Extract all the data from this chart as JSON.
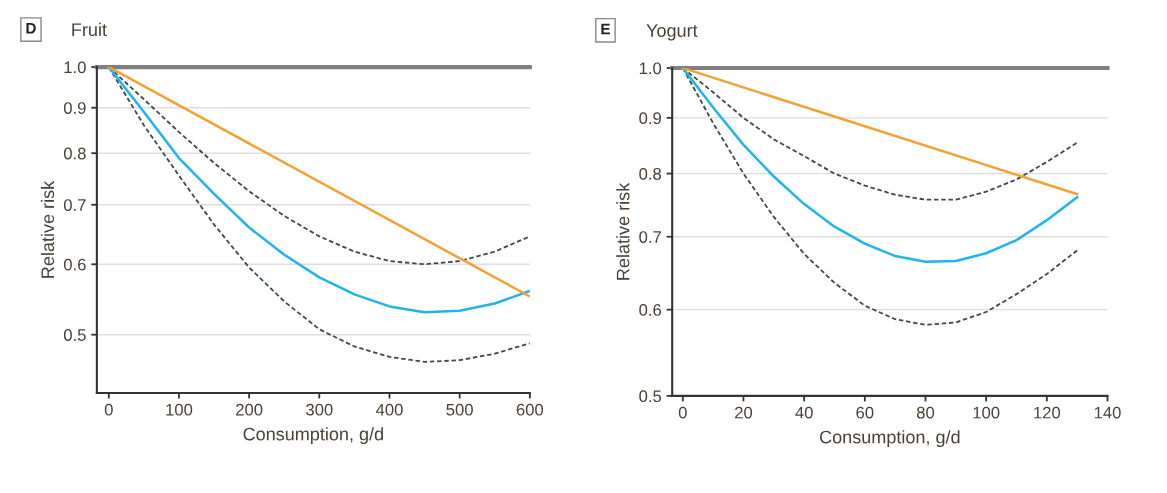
{
  "chart_data": [
    {
      "type": "line",
      "title": "Fruit",
      "annotations": [
        "D"
      ],
      "xlabel": "Consumption, g/d",
      "ylabel": "Relative risk",
      "log": "y",
      "xlim": [
        -17,
        600
      ],
      "xticks": [
        0,
        100,
        200,
        300,
        400,
        500,
        600
      ],
      "ylim": [
        0.43,
        1.0
      ],
      "yticks": [
        0.5,
        0.6,
        0.7,
        0.8,
        0.9,
        {
          "value": 1,
          "label": "1.0"
        }
      ],
      "grid": "y",
      "ref_lines": [
        {
          "axis": "y",
          "value": 1,
          "color": "#7f7f7f"
        }
      ],
      "series": [
        {
          "color": "#3c4a50",
          "line_style": "dashed",
          "x": [
            0,
            50,
            100,
            150,
            200,
            250,
            300,
            350,
            400,
            450,
            500,
            550,
            600
          ],
          "values": [
            1.0,
            0.92,
            0.845,
            0.78,
            0.725,
            0.68,
            0.645,
            0.62,
            0.605,
            0.6,
            0.605,
            0.62,
            0.645
          ]
        },
        {
          "color": "#3c4a50",
          "line_style": "dashed",
          "x": [
            0,
            50,
            100,
            150,
            200,
            250,
            300,
            350,
            400,
            450,
            500,
            550,
            600
          ],
          "values": [
            1.0,
            0.86,
            0.755,
            0.665,
            0.595,
            0.545,
            0.507,
            0.485,
            0.472,
            0.466,
            0.468,
            0.476,
            0.489
          ]
        },
        {
          "color": "#1eb4ec",
          "line_style": "solid",
          "x": [
            0,
            50,
            100,
            150,
            200,
            250,
            300,
            350,
            400,
            450,
            500,
            550,
            600
          ],
          "values": [
            1.0,
            0.89,
            0.79,
            0.72,
            0.66,
            0.615,
            0.58,
            0.555,
            0.538,
            0.53,
            0.532,
            0.542,
            0.56
          ]
        },
        {
          "color": "#f5a033",
          "line_style": "solid",
          "x": [
            0,
            600
          ],
          "values": [
            1.0,
            0.552
          ]
        }
      ]
    },
    {
      "type": "line",
      "title": "Yogurt",
      "annotations": [
        "E"
      ],
      "xlabel": "Consumption, g/d",
      "ylabel": "Relative risk",
      "log": "y",
      "xlim": [
        -3.5,
        140
      ],
      "xticks": [
        0,
        20,
        40,
        60,
        80,
        100,
        120,
        140
      ],
      "ylim": [
        0.5,
        1.0
      ],
      "yticks": [
        0.5,
        0.6,
        0.7,
        0.8,
        0.9,
        {
          "value": 1,
          "label": "1.0"
        }
      ],
      "grid": "y",
      "ref_lines": [
        {
          "axis": "y",
          "value": 1,
          "color": "#7f7f7f"
        }
      ],
      "series": [
        {
          "color": "#3c4a50",
          "line_style": "dashed",
          "x": [
            0,
            10,
            20,
            30,
            40,
            50,
            60,
            70,
            80,
            90,
            100,
            110,
            120,
            130
          ],
          "values": [
            1.0,
            0.95,
            0.9,
            0.86,
            0.83,
            0.8,
            0.78,
            0.765,
            0.757,
            0.757,
            0.77,
            0.79,
            0.82,
            0.854
          ]
        },
        {
          "color": "#3c4a50",
          "line_style": "dashed",
          "x": [
            0,
            10,
            20,
            30,
            40,
            50,
            60,
            70,
            80,
            90,
            100,
            110,
            120,
            130
          ],
          "values": [
            1.0,
            0.89,
            0.8,
            0.73,
            0.675,
            0.635,
            0.605,
            0.588,
            0.581,
            0.584,
            0.597,
            0.62,
            0.647,
            0.68
          ]
        },
        {
          "color": "#1eb4ec",
          "line_style": "solid",
          "x": [
            0,
            10,
            20,
            30,
            40,
            50,
            60,
            70,
            80,
            90,
            100,
            110,
            120,
            130
          ],
          "values": [
            1.0,
            0.92,
            0.85,
            0.795,
            0.75,
            0.715,
            0.69,
            0.672,
            0.664,
            0.665,
            0.676,
            0.695,
            0.725,
            0.761
          ]
        },
        {
          "color": "#f5a033",
          "line_style": "solid",
          "x": [
            0,
            130
          ],
          "values": [
            1.0,
            0.766
          ]
        }
      ]
    }
  ]
}
